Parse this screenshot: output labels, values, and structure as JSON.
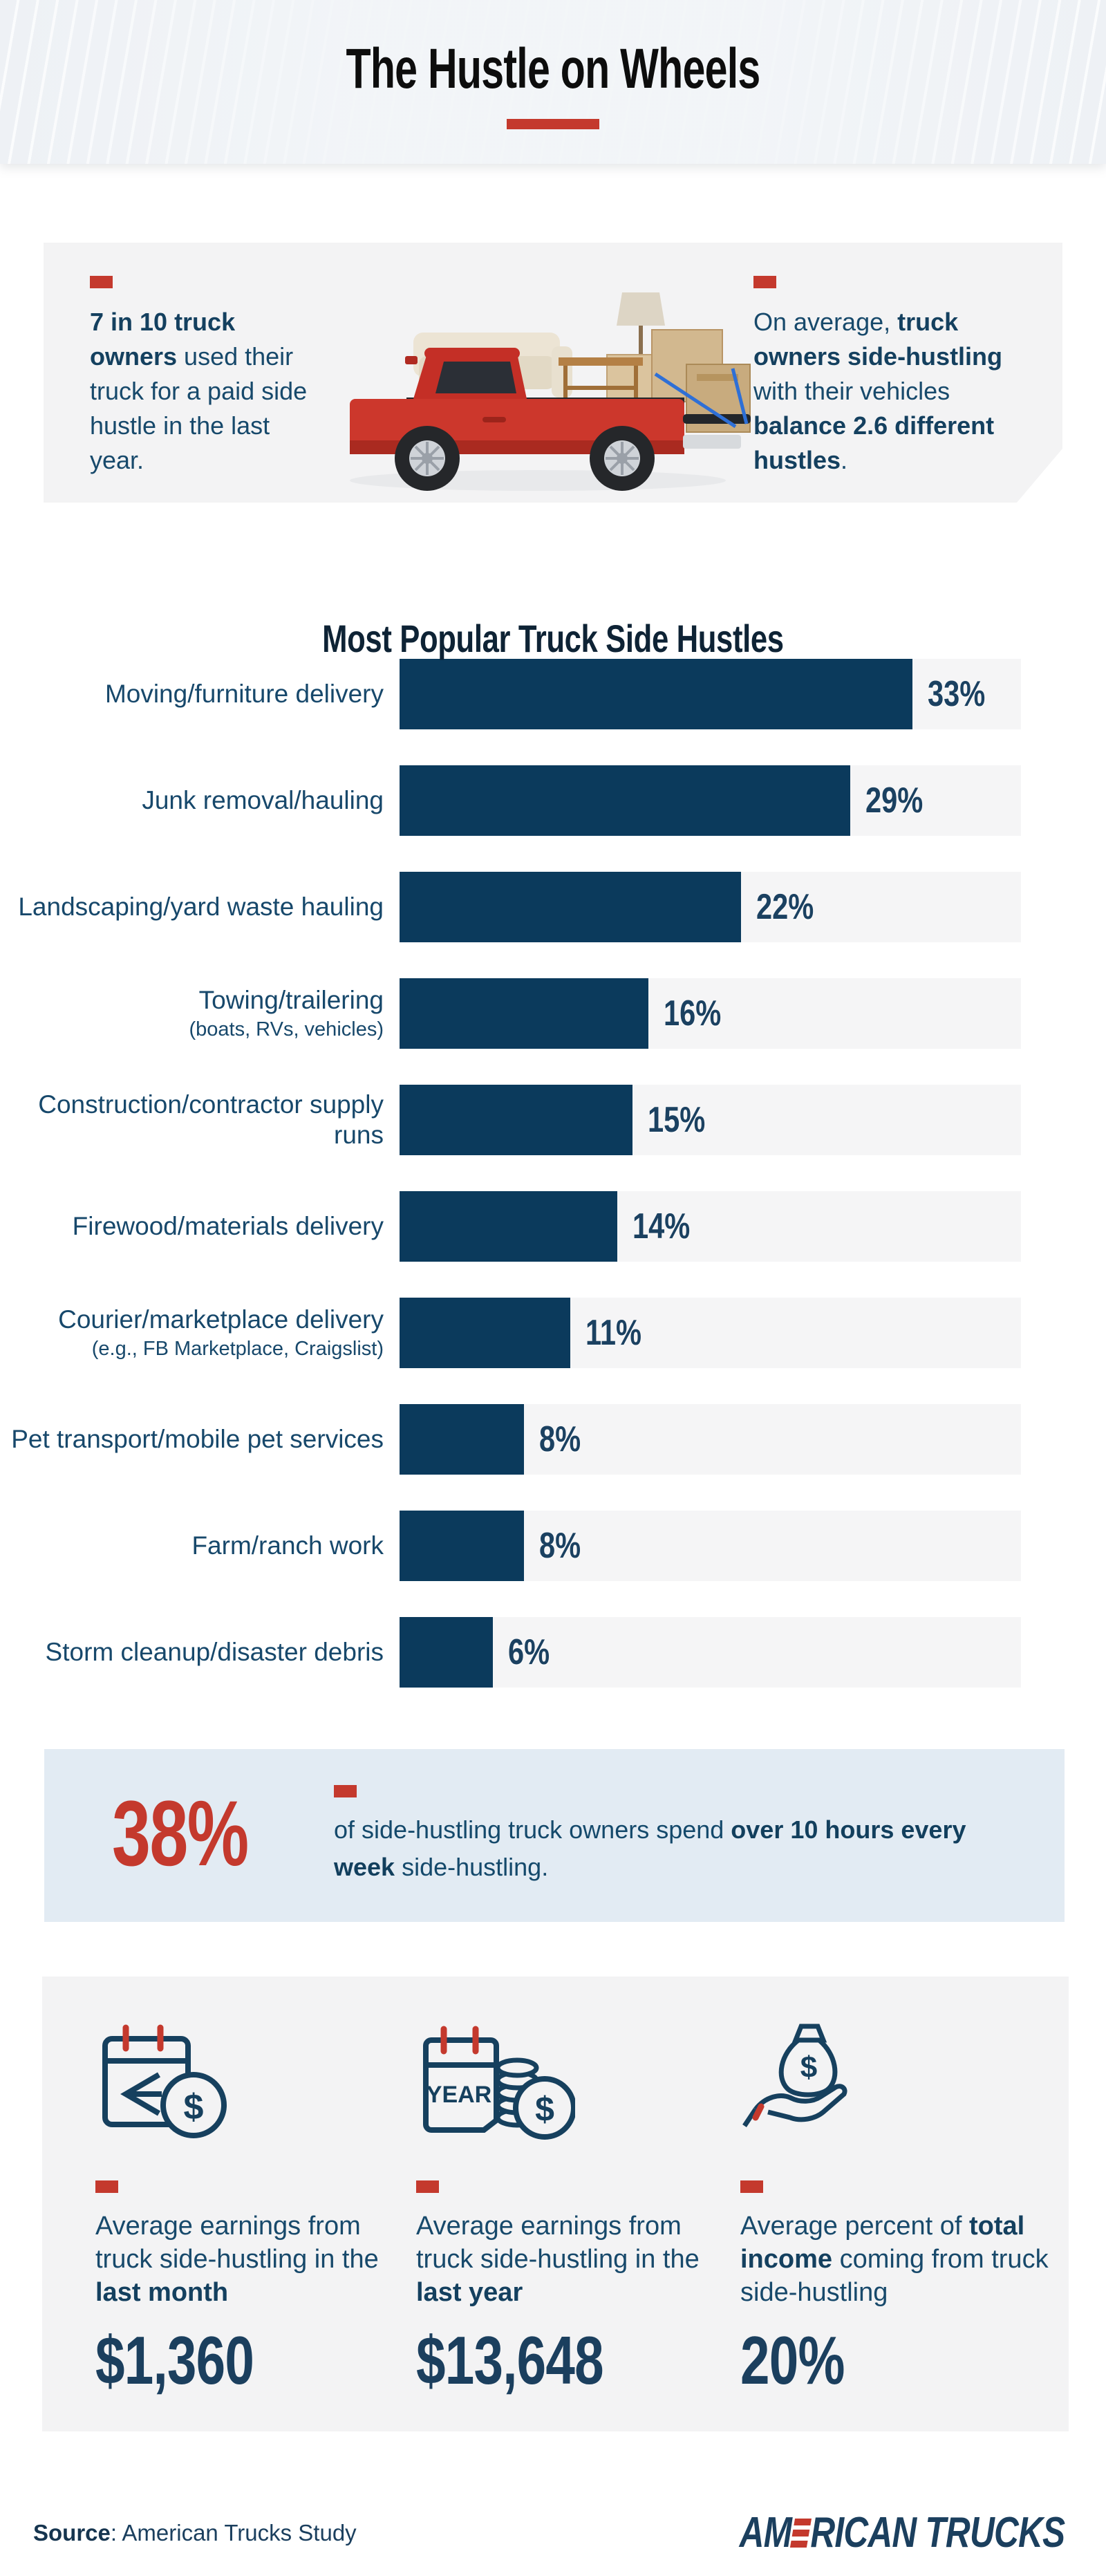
{
  "colors": {
    "accent_red": "#c4392d",
    "navy": "#17496b",
    "bar_navy": "#0b3a5c",
    "card_grey": "#f3f3f4",
    "callout_blue": "#e2ebf3",
    "track_grey": "#f5f5f6",
    "header_band": "#eef1f5"
  },
  "header": {
    "title": "The Hustle on Wheels"
  },
  "truck_card": {
    "fact_left": {
      "bold": "7 in 10 truck owners",
      "rest": " used their truck for a paid side hustle in the last year."
    },
    "fact_right": {
      "pre": "On average, ",
      "bold1": "truck owners side-hustling",
      "mid": " with their vehicles ",
      "bold2": "balance 2.6 different hustles",
      "end": "."
    }
  },
  "chart_data": {
    "type": "bar",
    "orientation": "horizontal",
    "title": "Most Popular Truck Side Hustles",
    "categories": [
      "Moving/furniture delivery",
      "Junk removal/hauling",
      "Landscaping/yard waste hauling",
      "Towing/trailering",
      "Construction/contractor supply runs",
      "Firewood/materials delivery",
      "Courier/marketplace delivery",
      "Pet transport/mobile pet services",
      "Farm/ranch work",
      "Storm cleanup/disaster debris"
    ],
    "sub_labels": [
      "",
      "",
      "",
      "(boats, RVs, vehicles)",
      "",
      "",
      "(e.g., FB Marketplace, Craigslist)",
      "",
      "",
      ""
    ],
    "values": [
      33,
      29,
      22,
      16,
      15,
      14,
      11,
      8,
      8,
      6
    ],
    "unit": "%",
    "xlim": [
      0,
      40
    ],
    "grid": false,
    "legend": false
  },
  "callout": {
    "stat": "38%",
    "pre": "of side-hustling truck owners spend ",
    "bold": "over 10 hours every week",
    "end": " side-hustling."
  },
  "stats": [
    {
      "icon": "calendar-month-dollar-icon",
      "text_pre": "Average earnings from truck side-hustling in the ",
      "text_bold": "last month",
      "text_post": "",
      "value": "$1,360"
    },
    {
      "icon": "calendar-year-coins-icon",
      "text_pre": "Average earnings from truck side-hustling in the ",
      "text_bold": "last year",
      "text_post": "",
      "value": "$13,648"
    },
    {
      "icon": "hand-money-bag-icon",
      "text_pre": "Average percent of ",
      "text_bold": "total income",
      "text_post": " coming from truck side-hustling",
      "value": "20%"
    }
  ],
  "footer": {
    "source_label": "Source",
    "source_rest": ": American Trucks Study",
    "logo_pre": "AM",
    "logo_post": "RICAN TRUCKS",
    "year_icon_label": "YEAR"
  }
}
